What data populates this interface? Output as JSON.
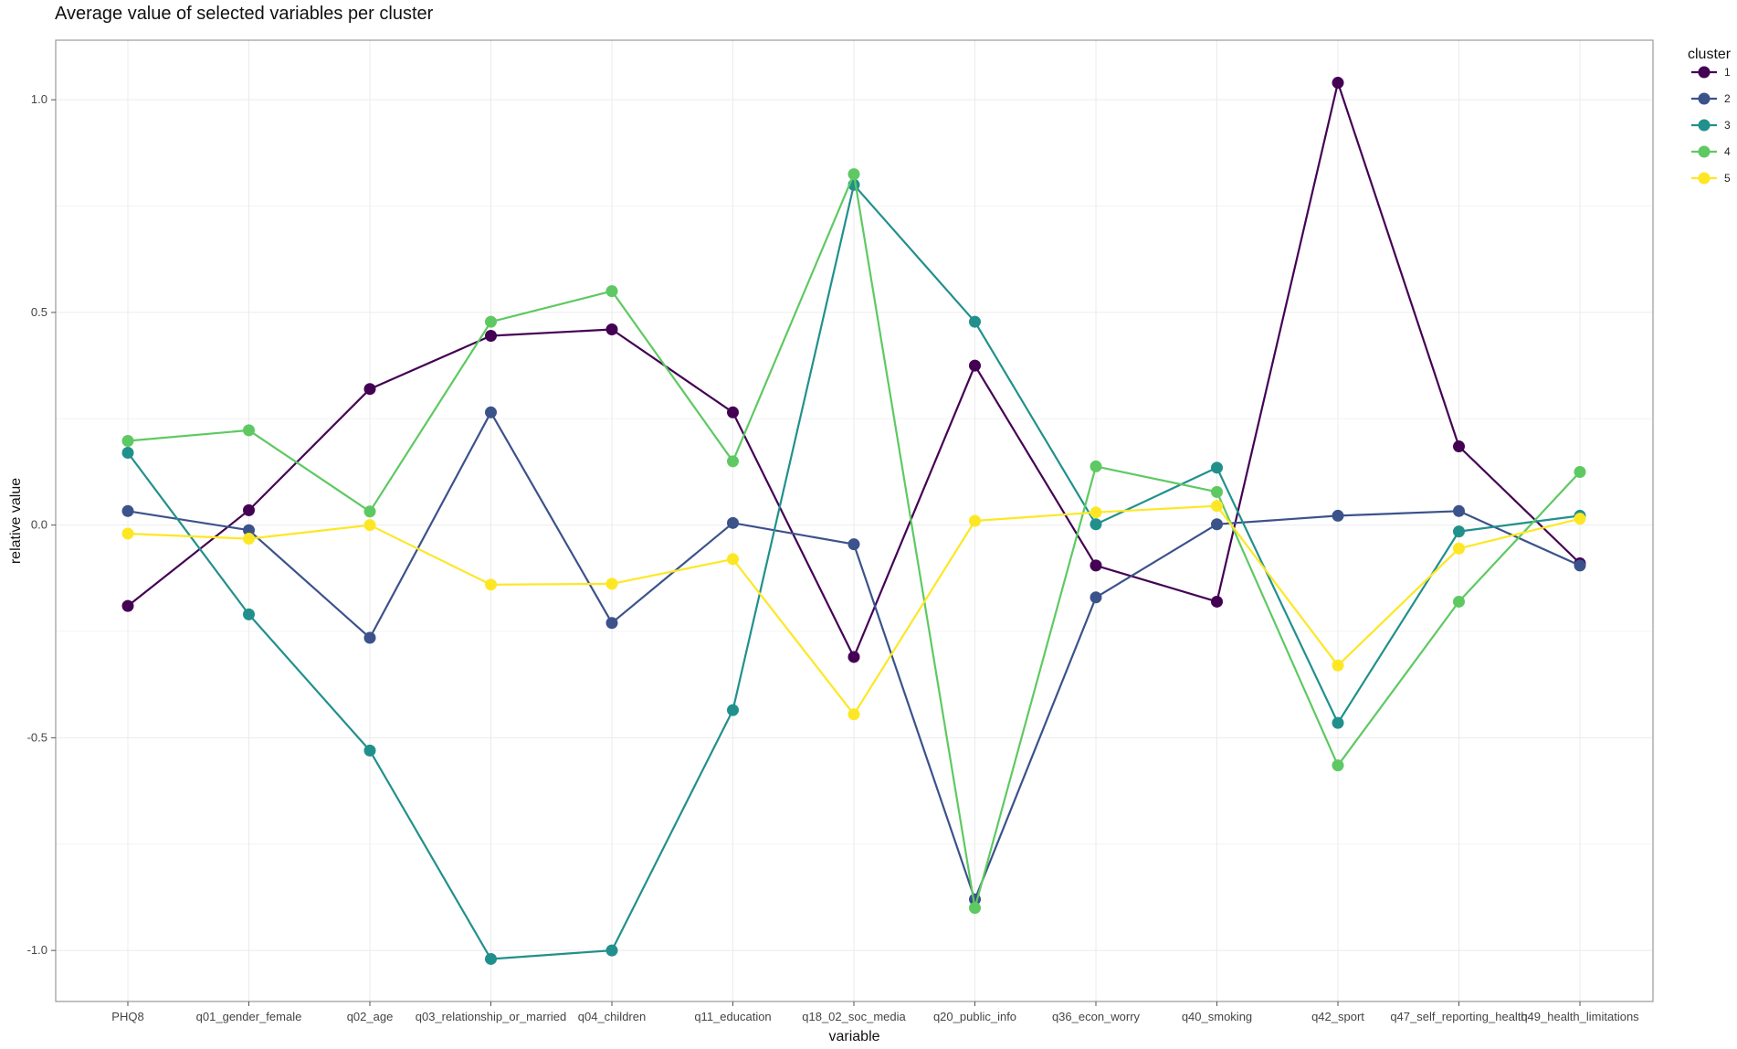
{
  "chart_data": {
    "type": "line",
    "title": "Average value of selected variables per cluster",
    "xlabel": "variable",
    "ylabel": "relative value",
    "categories": [
      "PHQ8",
      "q01_gender_female",
      "q02_age",
      "q03_relationship_or_married",
      "q04_children",
      "q11_education",
      "q18_02_soc_media",
      "q20_public_info",
      "q36_econ_worry",
      "q40_smoking",
      "q42_sport",
      "q47_self_reporting_health",
      "q49_health_limitations"
    ],
    "ylim": [
      -1.12,
      1.14
    ],
    "yticks": [
      1.0,
      0.5,
      0.0,
      -0.5,
      -1.0
    ],
    "ytick_labels": [
      "1.0",
      "0.5",
      "0.0",
      "-0.5",
      "-1.0"
    ],
    "grid": true,
    "legend": {
      "title": "cluster",
      "position": "right"
    },
    "series": [
      {
        "name": "1",
        "color": "#440154",
        "values": [
          -0.19,
          0.035,
          0.32,
          0.445,
          0.46,
          0.265,
          -0.31,
          0.375,
          -0.095,
          -0.18,
          1.04,
          0.185,
          -0.09
        ]
      },
      {
        "name": "2",
        "color": "#3b528b",
        "values": [
          0.033,
          -0.012,
          -0.265,
          0.265,
          -0.23,
          0.005,
          -0.045,
          -0.88,
          -0.17,
          0.002,
          0.022,
          0.033,
          -0.095
        ]
      },
      {
        "name": "3",
        "color": "#21908c",
        "values": [
          0.17,
          -0.21,
          -0.53,
          -1.02,
          -1.0,
          -0.435,
          0.8,
          0.478,
          0.002,
          0.135,
          -0.465,
          -0.015,
          0.022
        ]
      },
      {
        "name": "4",
        "color": "#5ec962",
        "values": [
          0.198,
          0.223,
          0.032,
          0.478,
          0.55,
          0.15,
          0.825,
          -0.9,
          0.138,
          0.078,
          -0.565,
          -0.18,
          0.125
        ]
      },
      {
        "name": "5",
        "color": "#fde725",
        "values": [
          -0.02,
          -0.032,
          0.0,
          -0.14,
          -0.138,
          -0.08,
          -0.445,
          0.01,
          0.03,
          0.045,
          -0.33,
          -0.055,
          0.015
        ]
      }
    ]
  }
}
